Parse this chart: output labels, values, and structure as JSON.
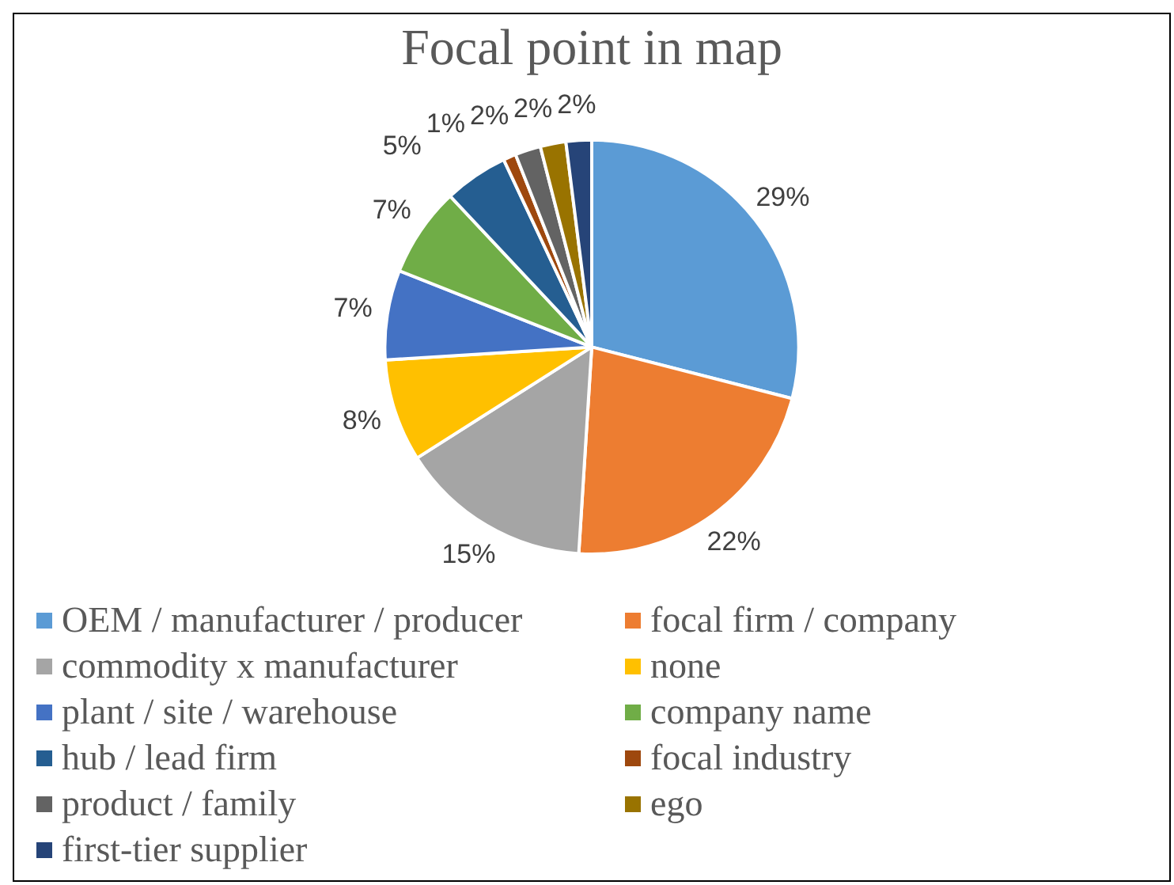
{
  "chart_data": {
    "type": "pie",
    "title": "Focal point in map",
    "categories": [
      "OEM / manufacturer / producer",
      "focal firm / company",
      "commodity x manufacturer",
      "none",
      "plant / site / warehouse",
      "company name",
      "hub / lead firm",
      "focal industry",
      "product / family",
      "ego",
      "first-tier supplier"
    ],
    "values": [
      29,
      22,
      15,
      8,
      7,
      7,
      5,
      1,
      2,
      2,
      2
    ],
    "colors": [
      "#5b9bd5",
      "#ed7d31",
      "#a5a5a5",
      "#ffc000",
      "#4472c4",
      "#70ad47",
      "#255e91",
      "#9e480e",
      "#636363",
      "#997300",
      "#264478"
    ],
    "value_labels": [
      "29%",
      "22%",
      "15%",
      "8%",
      "7%",
      "7%",
      "5%",
      "1%",
      "2%",
      "2%",
      "2%"
    ],
    "legend": "bottom"
  }
}
